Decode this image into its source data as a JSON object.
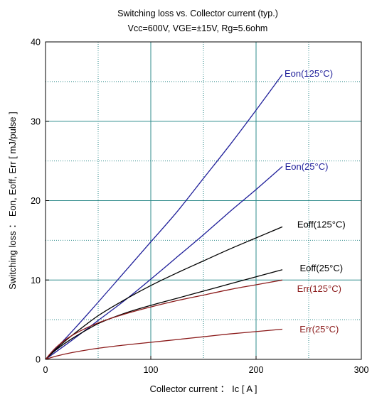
{
  "chart_data": {
    "type": "line",
    "title": "Switching loss  vs.  Collector current  (typ.)",
    "subtitle": "Vcc=600V, VGE=±15V, Rg=5.6ohm",
    "xlabel": "Collector current ： Ic  [ A ]",
    "ylabel": "Switching loss ： Eon, Eoff, Err  [ mJ/pulse ]",
    "xlim": [
      0,
      300
    ],
    "ylim": [
      0,
      40
    ],
    "xticks": [
      0,
      100,
      200,
      300
    ],
    "yticks": [
      0,
      10,
      20,
      30,
      40
    ],
    "x_minor_step": 50,
    "y_minor_step": 5,
    "grid": true,
    "series": [
      {
        "name": "Eon(125°C)",
        "color": "#1f1f9a",
        "x": [
          0,
          25,
          50,
          75,
          100,
          125,
          150,
          175,
          200,
          225
        ],
        "y": [
          0,
          3.5,
          7.2,
          11.0,
          14.8,
          18.6,
          22.8,
          27.0,
          31.4,
          35.9
        ]
      },
      {
        "name": "Eon(25°C)",
        "color": "#1f1f9a",
        "x": [
          0,
          25,
          50,
          75,
          100,
          125,
          150,
          175,
          200,
          225
        ],
        "y": [
          0,
          2.4,
          4.9,
          7.4,
          10.1,
          12.9,
          15.7,
          18.6,
          21.4,
          24.3
        ]
      },
      {
        "name": "Eoff(125°C)",
        "color": "#000000",
        "x": [
          0,
          10,
          25,
          50,
          75,
          100,
          125,
          150,
          175,
          200,
          225
        ],
        "y": [
          0,
          1.3,
          3.0,
          5.5,
          7.5,
          9.3,
          10.9,
          12.4,
          13.9,
          15.3,
          16.7
        ]
      },
      {
        "name": "Eoff(25°C)",
        "color": "#000000",
        "x": [
          0,
          10,
          25,
          50,
          75,
          100,
          125,
          150,
          175,
          200,
          225
        ],
        "y": [
          0,
          1.2,
          2.6,
          4.5,
          5.8,
          6.8,
          7.7,
          8.6,
          9.5,
          10.4,
          11.3
        ]
      },
      {
        "name": "Err(125°C)",
        "color": "#8b1a1a",
        "x": [
          0,
          10,
          25,
          50,
          75,
          100,
          125,
          150,
          175,
          200,
          225
        ],
        "y": [
          0,
          1.5,
          3.0,
          4.6,
          5.7,
          6.6,
          7.4,
          8.1,
          8.8,
          9.4,
          10.0
        ]
      },
      {
        "name": "Err(25°C)",
        "color": "#8b1a1a",
        "x": [
          0,
          10,
          25,
          50,
          75,
          100,
          125,
          150,
          175,
          200,
          225
        ],
        "y": [
          0,
          0.4,
          0.85,
          1.4,
          1.8,
          2.15,
          2.5,
          2.85,
          3.2,
          3.5,
          3.8
        ]
      }
    ],
    "annotations": [
      {
        "text": "Eon(125°C)",
        "x": 250,
        "y": 36.0,
        "color": "#1f1f9a"
      },
      {
        "text": "Eon(25°C)",
        "x": 248,
        "y": 24.3,
        "color": "#1f1f9a"
      },
      {
        "text": "Eoff(125°C)",
        "x": 262,
        "y": 17.0,
        "color": "#000000"
      },
      {
        "text": "Eoff(25°C)",
        "x": 262,
        "y": 11.5,
        "color": "#000000"
      },
      {
        "text": "Err(125°C)",
        "x": 260,
        "y": 8.9,
        "color": "#8b1a1a"
      },
      {
        "text": "Err(25°C)",
        "x": 260,
        "y": 3.8,
        "color": "#8b1a1a"
      }
    ]
  },
  "colors": {
    "grid": "#2f8b8b",
    "frame": "#000000"
  }
}
